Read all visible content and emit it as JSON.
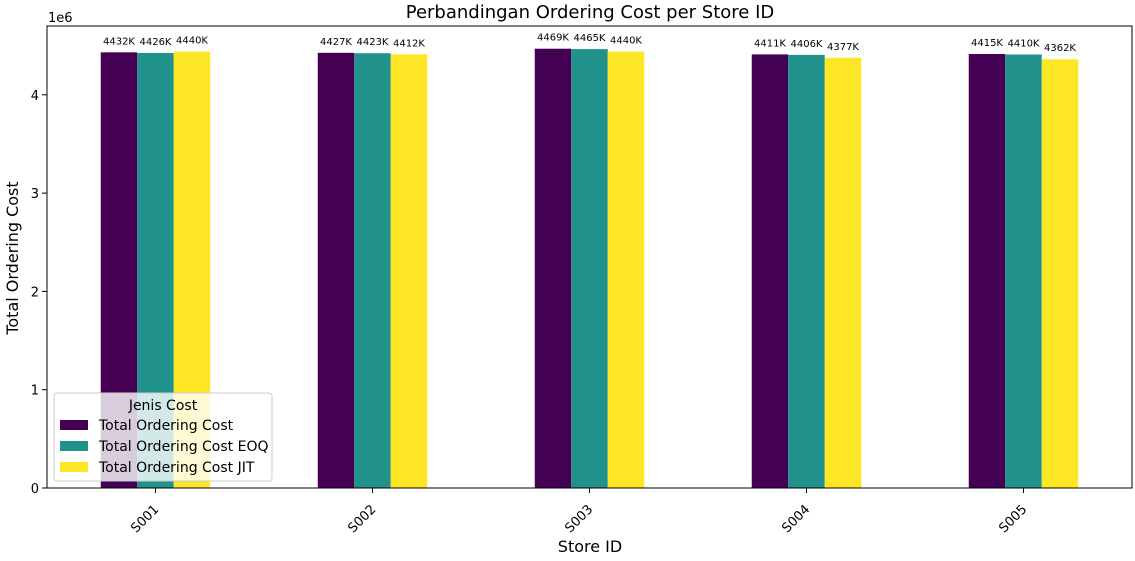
{
  "chart_data": {
    "type": "bar",
    "title": "Perbandingan Ordering Cost per Store ID",
    "xlabel": "Store ID",
    "ylabel": "Total Ordering Cost",
    "offset_text": "1e6",
    "categories": [
      "S001",
      "S002",
      "S003",
      "S004",
      "S005"
    ],
    "ylim": [
      0,
      4700000
    ],
    "yticks": [
      0,
      1000000,
      2000000,
      3000000,
      4000000
    ],
    "ytick_labels": [
      "0",
      "1",
      "2",
      "3",
      "4"
    ],
    "grid": false,
    "legend": {
      "title": "Jenis Cost",
      "placement": "lower-left"
    },
    "series": [
      {
        "name": "Total Ordering Cost",
        "color": "#440154",
        "values": [
          4432000,
          4427000,
          4469000,
          4411000,
          4415000
        ],
        "labels": [
          "4432K",
          "4427K",
          "4469K",
          "4411K",
          "4415K"
        ]
      },
      {
        "name": "Total Ordering Cost EOQ",
        "color": "#21918c",
        "values": [
          4426000,
          4423000,
          4465000,
          4406000,
          4410000
        ],
        "labels": [
          "4426K",
          "4423K",
          "4465K",
          "4406K",
          "4410K"
        ]
      },
      {
        "name": "Total Ordering Cost JIT",
        "color": "#fde725",
        "values": [
          4440000,
          4412000,
          4440000,
          4377000,
          4362000
        ],
        "labels": [
          "4440K",
          "4412K",
          "4440K",
          "4377K",
          "4362K"
        ]
      }
    ]
  }
}
